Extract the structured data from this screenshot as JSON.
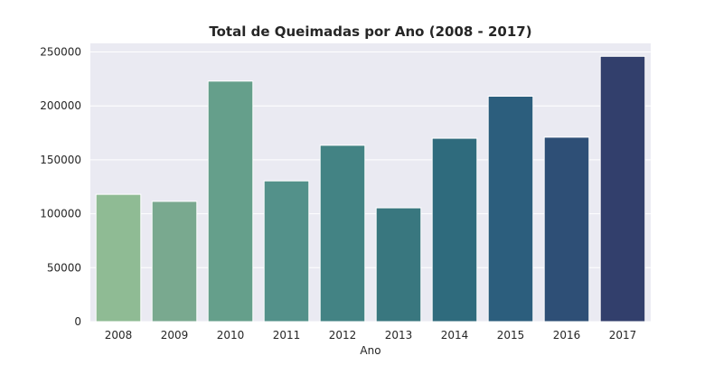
{
  "chart_data": {
    "type": "bar",
    "title": "Total de Queimadas por Ano (2008 - 2017)",
    "xlabel": "Ano",
    "ylabel": "",
    "categories": [
      "2008",
      "2009",
      "2010",
      "2011",
      "2012",
      "2013",
      "2014",
      "2015",
      "2016",
      "2017"
    ],
    "values": [
      118000,
      111500,
      223000,
      130500,
      163500,
      105500,
      170000,
      209000,
      171000,
      246000
    ],
    "ylim": [
      0,
      258000
    ],
    "yticks": [
      0,
      50000,
      100000,
      150000,
      200000,
      250000
    ],
    "ytick_labels": [
      "0",
      "50000",
      "100000",
      "150000",
      "200000",
      "250000"
    ],
    "grid": true,
    "plot_background": "#eaeaf2",
    "bar_colors": [
      "#8fbb94",
      "#79a98f",
      "#659f8b",
      "#53918a",
      "#438384",
      "#39777f",
      "#2f6b7d",
      "#2c5e7d",
      "#2e4f76",
      "#323f6c"
    ]
  }
}
